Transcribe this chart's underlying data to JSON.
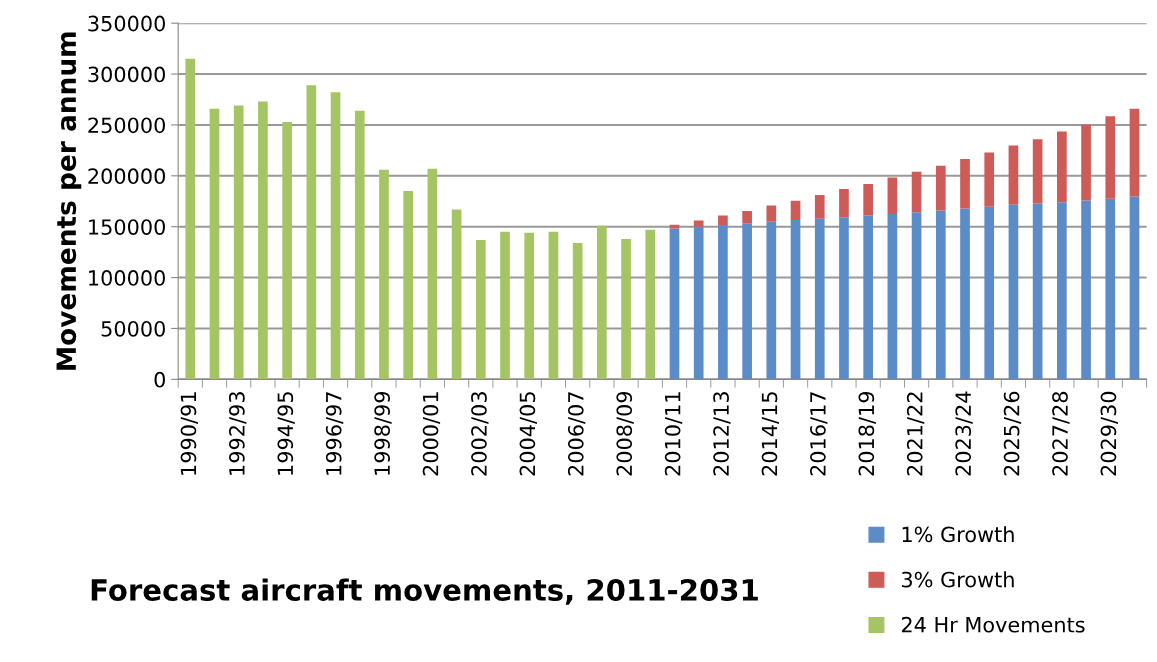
{
  "chart_data": {
    "type": "bar",
    "title": "Forecast aircraft movements, 2011-2031",
    "ylabel": "Movements per annum",
    "categories": [
      "1990/91",
      null,
      "1992/93",
      null,
      "1994/95",
      null,
      "1996/97",
      null,
      "1998/99",
      null,
      "2000/01",
      null,
      "2002/03",
      null,
      "2004/05",
      null,
      "2006/07",
      null,
      "2008/09",
      null,
      "2010/11",
      null,
      "2012/13",
      null,
      "2014/15",
      null,
      "2016/17",
      null,
      "2018/19",
      null,
      "2021/22",
      null,
      "2023/24",
      null,
      "2025/26",
      null,
      "2027/28",
      null,
      "2029/30",
      null
    ],
    "series": [
      {
        "name": "1% Growth",
        "color": "#5b8cc8",
        "values": [
          null,
          null,
          null,
          null,
          null,
          null,
          null,
          null,
          null,
          null,
          null,
          null,
          null,
          null,
          null,
          null,
          null,
          null,
          null,
          null,
          148300,
          149900,
          151600,
          153300,
          154900,
          156600,
          157900,
          159200,
          160900,
          162500,
          164200,
          165800,
          167800,
          169500,
          171500,
          172800,
          174100,
          175800,
          177400,
          179700
        ]
      },
      {
        "name": "3% Growth",
        "color": "#cd5b57",
        "values": [
          null,
          null,
          null,
          null,
          null,
          null,
          null,
          null,
          null,
          null,
          null,
          null,
          null,
          null,
          null,
          null,
          null,
          null,
          null,
          null,
          3600,
          6300,
          9300,
          12200,
          15900,
          18800,
          23200,
          27800,
          31100,
          35800,
          39700,
          44100,
          48700,
          53300,
          58200,
          63200,
          69500,
          74400,
          81100,
          86100
        ]
      },
      {
        "name": "24 Hr Movements",
        "color": "#a5c565",
        "values": [
          315000,
          266000,
          269000,
          273000,
          253000,
          289000,
          282000,
          264000,
          206000,
          185000,
          207000,
          167000,
          137000,
          145000,
          144000,
          145000,
          134000,
          151000,
          138000,
          147000,
          null,
          null,
          null,
          null,
          null,
          null,
          null,
          null,
          null,
          null,
          null,
          null,
          null,
          null,
          null,
          null,
          null,
          null,
          null,
          null
        ]
      }
    ],
    "stacked": true,
    "ylim": [
      0,
      350000
    ],
    "yticks": [
      0,
      50000,
      100000,
      150000,
      200000,
      250000,
      300000,
      350000
    ],
    "grid": "y",
    "legend": "bottom right"
  }
}
